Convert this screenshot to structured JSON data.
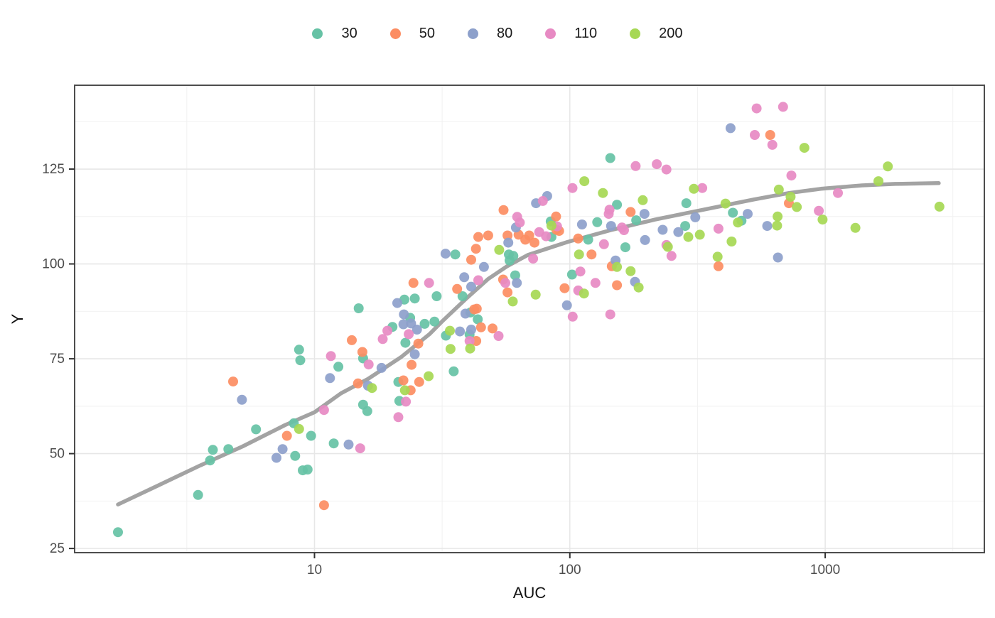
{
  "legend": {
    "items": [
      {
        "label": "30",
        "color": "#66C2A5"
      },
      {
        "label": "50",
        "color": "#FC8D62"
      },
      {
        "label": "80",
        "color": "#8DA0CB"
      },
      {
        "label": "110",
        "color": "#E78AC3"
      },
      {
        "label": "200",
        "color": "#A6D854"
      }
    ]
  },
  "chart_data": {
    "type": "scatter",
    "title": "",
    "xlabel": "AUC",
    "ylabel": "Y",
    "x_scale": "log10",
    "xlim": [
      1.15,
      4200
    ],
    "ylim": [
      23.9,
      147.1
    ],
    "x_ticks": [
      10,
      100,
      1000
    ],
    "x_minor_ticks": [
      3.162,
      31.62,
      316.2,
      3162
    ],
    "y_ticks": [
      25,
      50,
      75,
      100,
      125
    ],
    "y_minor_ticks": [
      37.5,
      62.5,
      87.5,
      112.5,
      137.5
    ],
    "grid": true,
    "legend_position": "top",
    "point_radius": 7,
    "colors": {
      "panel_border": "#4d4d4d",
      "grid_major": "#e7e7e7",
      "grid_minor": "#f2f2f2",
      "tick_mark": "#333333",
      "smooth_line": "#A3A3A3"
    },
    "smooth_line": {
      "name": "loess-fit",
      "points": [
        [
          1.7,
          36.6
        ],
        [
          2.44,
          41.6
        ],
        [
          3.57,
          46.9
        ],
        [
          5.23,
          51.9
        ],
        [
          7.66,
          57.5
        ],
        [
          10,
          60.9
        ],
        [
          12.7,
          65.9
        ],
        [
          16.2,
          69.7
        ],
        [
          21.9,
          75.5
        ],
        [
          28.2,
          81.5
        ],
        [
          32,
          85.2
        ],
        [
          39.2,
          90.8
        ],
        [
          47.8,
          96.0
        ],
        [
          56.8,
          99.4
        ],
        [
          68.7,
          102.4
        ],
        [
          97.9,
          105.8
        ],
        [
          144.6,
          108.9
        ],
        [
          215.8,
          111.7
        ],
        [
          306,
          113.8
        ],
        [
          526,
          117.0
        ],
        [
          722,
          118.7
        ],
        [
          961,
          119.8
        ],
        [
          1393,
          120.7
        ],
        [
          1875,
          121.1
        ],
        [
          2786,
          121.3
        ]
      ]
    },
    "series": [
      {
        "name": "30",
        "color": "#66C2A5",
        "points": [
          [
            1.7,
            29.3
          ],
          [
            3.5,
            39.1
          ],
          [
            3.9,
            48.2
          ],
          [
            4.0,
            51.0
          ],
          [
            4.6,
            51.2
          ],
          [
            5.9,
            56.4
          ],
          [
            8.3,
            58.0
          ],
          [
            8.7,
            77.4
          ],
          [
            8.8,
            74.6
          ],
          [
            8.4,
            49.4
          ],
          [
            9.0,
            45.6
          ],
          [
            9.4,
            45.8
          ],
          [
            9.7,
            54.7
          ],
          [
            11.9,
            52.7
          ],
          [
            12.4,
            72.9
          ],
          [
            15.5,
            75.1
          ],
          [
            15.5,
            62.9
          ],
          [
            16.1,
            61.2
          ],
          [
            14.9,
            88.3
          ],
          [
            20.2,
            83.4
          ],
          [
            21.5,
            63.9
          ],
          [
            22.7,
            79.2
          ],
          [
            21.3,
            68.9
          ],
          [
            22.5,
            90.6
          ],
          [
            24.7,
            90.9
          ],
          [
            23.7,
            85.8
          ],
          [
            27.0,
            84.2
          ],
          [
            29.5,
            84.8
          ],
          [
            30.1,
            91.5
          ],
          [
            32.7,
            81.1
          ],
          [
            35.1,
            71.7
          ],
          [
            35.6,
            102.5
          ],
          [
            38.0,
            91.5
          ],
          [
            40.8,
            87.2
          ],
          [
            43.6,
            85.4
          ],
          [
            40.5,
            81.4
          ],
          [
            57.7,
            102.5
          ],
          [
            60.1,
            102.1
          ],
          [
            58.1,
            100.9
          ],
          [
            61.1,
            97.0
          ],
          [
            84.2,
            111.2
          ],
          [
            84.7,
            107.1
          ],
          [
            102,
            97.2
          ],
          [
            118,
            106.4
          ],
          [
            128,
            111.0
          ],
          [
            144,
            127.9
          ],
          [
            153,
            115.6
          ],
          [
            182,
            111.5
          ],
          [
            165,
            104.4
          ],
          [
            283,
            110.0
          ],
          [
            286,
            116.0
          ],
          [
            435,
            113.5
          ],
          [
            470,
            111.4
          ]
        ]
      },
      {
        "name": "50",
        "color": "#FC8D62",
        "points": [
          [
            4.8,
            69.0
          ],
          [
            7.8,
            54.7
          ],
          [
            10.9,
            36.4
          ],
          [
            14.0,
            79.9
          ],
          [
            14.8,
            68.5
          ],
          [
            15.4,
            76.8
          ],
          [
            22.3,
            69.3
          ],
          [
            24.0,
            73.4
          ],
          [
            23.8,
            66.7
          ],
          [
            25.7,
            68.9
          ],
          [
            25.5,
            79.0
          ],
          [
            24.4,
            95.0
          ],
          [
            36.2,
            93.4
          ],
          [
            42.2,
            88.0
          ],
          [
            43.0,
            79.7
          ],
          [
            44.9,
            83.3
          ],
          [
            49.8,
            83.0
          ],
          [
            41.1,
            101.1
          ],
          [
            42.9,
            104.0
          ],
          [
            43.8,
            107.1
          ],
          [
            47.9,
            107.5
          ],
          [
            55.0,
            114.2
          ],
          [
            57.0,
            107.5
          ],
          [
            63.0,
            107.7
          ],
          [
            66.9,
            106.4
          ],
          [
            54.8,
            95.9
          ],
          [
            57.0,
            92.5
          ],
          [
            43.2,
            88.2
          ],
          [
            69.3,
            107.5
          ],
          [
            72.7,
            105.6
          ],
          [
            88.3,
            112.5
          ],
          [
            88.6,
            109.0
          ],
          [
            90.8,
            108.7
          ],
          [
            95.4,
            93.6
          ],
          [
            107.8,
            106.7
          ],
          [
            121.6,
            102.5
          ],
          [
            146,
            99.4
          ],
          [
            153,
            94.4
          ],
          [
            173,
            113.7
          ],
          [
            382,
            99.4
          ],
          [
            609,
            134.0
          ],
          [
            721,
            116.0
          ]
        ]
      },
      {
        "name": "80",
        "color": "#8DA0CB",
        "points": [
          [
            5.2,
            64.2
          ],
          [
            7.1,
            48.9
          ],
          [
            7.5,
            51.2
          ],
          [
            11.5,
            69.9
          ],
          [
            13.6,
            52.4
          ],
          [
            16.2,
            67.9
          ],
          [
            18.3,
            72.6
          ],
          [
            21.1,
            89.7
          ],
          [
            22.3,
            84.1
          ],
          [
            22.4,
            86.7
          ],
          [
            23.9,
            84.3
          ],
          [
            24.7,
            76.2
          ],
          [
            25.2,
            82.7
          ],
          [
            32.6,
            102.7
          ],
          [
            37.1,
            82.2
          ],
          [
            41.1,
            82.7
          ],
          [
            39.0,
            86.9
          ],
          [
            38.6,
            96.5
          ],
          [
            46.1,
            99.2
          ],
          [
            41.1,
            94.0
          ],
          [
            62.0,
            95.0
          ],
          [
            61.5,
            109.6
          ],
          [
            57.4,
            105.6
          ],
          [
            73.7,
            116.0
          ],
          [
            81.5,
            117.9
          ],
          [
            97.4,
            89.1
          ],
          [
            111.6,
            110.4
          ],
          [
            145,
            110.0
          ],
          [
            151,
            100.9
          ],
          [
            180,
            95.3
          ],
          [
            196,
            113.2
          ],
          [
            197,
            106.3
          ],
          [
            231,
            109.0
          ],
          [
            266,
            108.4
          ],
          [
            310,
            112.3
          ],
          [
            426,
            135.8
          ],
          [
            497,
            113.2
          ],
          [
            593,
            110.0
          ],
          [
            653,
            101.7
          ]
        ]
      },
      {
        "name": "110",
        "color": "#E78AC3",
        "points": [
          [
            10.9,
            61.5
          ],
          [
            11.6,
            75.7
          ],
          [
            15.1,
            51.4
          ],
          [
            16.3,
            73.5
          ],
          [
            18.5,
            80.2
          ],
          [
            19.3,
            82.4
          ],
          [
            21.3,
            59.6
          ],
          [
            22.8,
            63.7
          ],
          [
            23.4,
            81.5
          ],
          [
            28.1,
            95.0
          ],
          [
            40.5,
            79.7
          ],
          [
            43.8,
            95.7
          ],
          [
            52.6,
            81.0
          ],
          [
            55.9,
            95.0
          ],
          [
            62.2,
            112.4
          ],
          [
            63.7,
            110.9
          ],
          [
            75.9,
            108.4
          ],
          [
            78.4,
            116.6
          ],
          [
            80.7,
            107.3
          ],
          [
            71.8,
            101.4
          ],
          [
            89.1,
            109.9
          ],
          [
            102.4,
            120.0
          ],
          [
            110,
            98.0
          ],
          [
            102.6,
            86.1
          ],
          [
            107.9,
            93.0
          ],
          [
            126,
            95.0
          ],
          [
            136,
            105.2
          ],
          [
            144,
            86.7
          ],
          [
            143,
            114.3
          ],
          [
            142,
            113.2
          ],
          [
            160,
            109.6
          ],
          [
            163,
            108.9
          ],
          [
            181,
            125.8
          ],
          [
            219,
            126.3
          ],
          [
            239,
            124.9
          ],
          [
            239,
            105.0
          ],
          [
            250,
            102.1
          ],
          [
            330,
            120.0
          ],
          [
            382,
            109.3
          ],
          [
            530,
            134.0
          ],
          [
            539,
            141.0
          ],
          [
            621,
            131.4
          ],
          [
            684,
            141.4
          ],
          [
            737,
            123.3
          ],
          [
            944,
            114.0
          ],
          [
            1122,
            118.7
          ]
        ]
      },
      {
        "name": "200",
        "color": "#A6D854",
        "points": [
          [
            8.7,
            56.5
          ],
          [
            16.8,
            67.3
          ],
          [
            22.6,
            66.7
          ],
          [
            28.0,
            70.4
          ],
          [
            33.9,
            82.4
          ],
          [
            34.1,
            77.6
          ],
          [
            40.7,
            77.7
          ],
          [
            52.9,
            103.7
          ],
          [
            59.8,
            90.1
          ],
          [
            73.5,
            91.9
          ],
          [
            84.7,
            110.1
          ],
          [
            108.6,
            102.5
          ],
          [
            113.6,
            92.2
          ],
          [
            114,
            121.8
          ],
          [
            134.7,
            118.7
          ],
          [
            153,
            99.2
          ],
          [
            173,
            98.1
          ],
          [
            186,
            93.8
          ],
          [
            193,
            116.8
          ],
          [
            242,
            104.5
          ],
          [
            291,
            107.1
          ],
          [
            306,
            119.8
          ],
          [
            323,
            107.7
          ],
          [
            379,
            101.9
          ],
          [
            407,
            115.9
          ],
          [
            430,
            105.9
          ],
          [
            455,
            110.9
          ],
          [
            648,
            110.1
          ],
          [
            651,
            112.5
          ],
          [
            658,
            119.6
          ],
          [
            732,
            117.7
          ],
          [
            774,
            115.0
          ],
          [
            829,
            130.6
          ],
          [
            977,
            111.7
          ],
          [
            1313,
            109.5
          ],
          [
            1616,
            121.8
          ],
          [
            1759,
            125.7
          ],
          [
            2802,
            115.1
          ]
        ]
      }
    ]
  }
}
